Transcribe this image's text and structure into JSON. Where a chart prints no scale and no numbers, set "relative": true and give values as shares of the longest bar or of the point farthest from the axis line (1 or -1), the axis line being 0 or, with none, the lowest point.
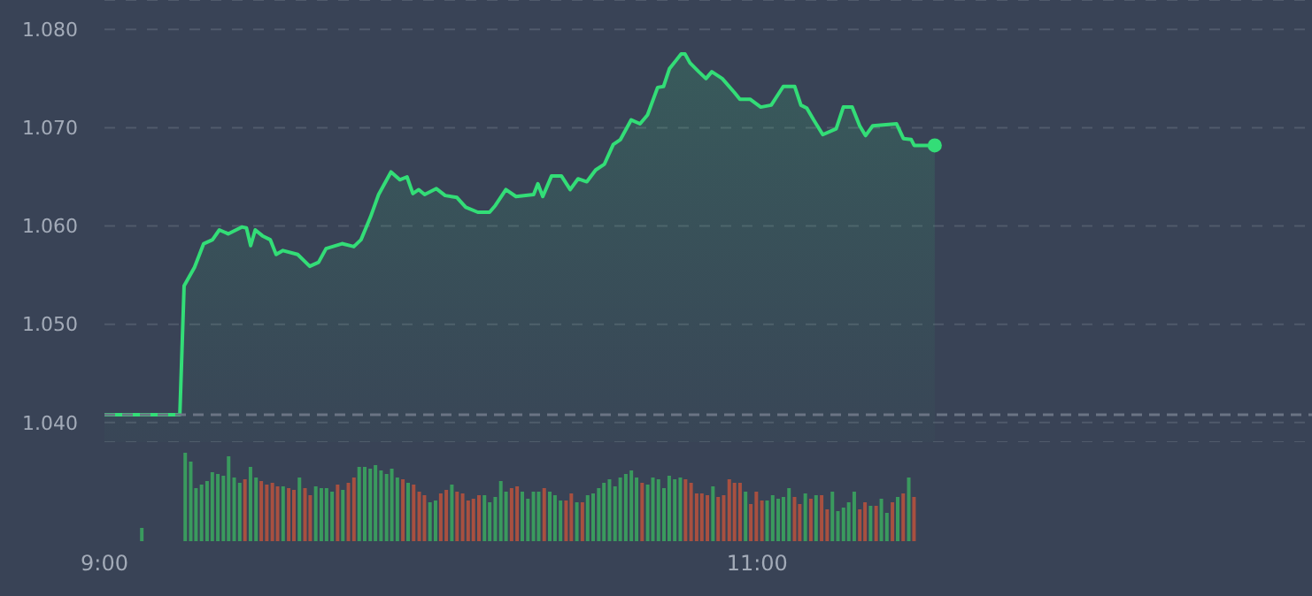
{
  "chart_data": [
    {
      "type": "area",
      "color": "#33dd77",
      "xlim": [
        9,
        12.7
      ],
      "ylim": [
        1.038,
        1.083
      ],
      "yticks": [
        {
          "value": 1.04,
          "label": "1.040"
        },
        {
          "value": 1.05,
          "label": "1.050"
        },
        {
          "value": 1.06,
          "label": "1.060"
        },
        {
          "value": 1.07,
          "label": "1.070"
        },
        {
          "value": 1.08,
          "label": "1.080"
        }
      ],
      "grid": "y",
      "tick_labels": "y",
      "x": [
        9.0,
        9.231,
        9.244,
        9.276,
        9.304,
        9.331,
        9.352,
        9.379,
        9.421,
        9.435,
        9.448,
        9.462,
        9.484,
        9.508,
        9.526,
        9.547,
        9.592,
        9.629,
        9.656,
        9.679,
        9.728,
        9.764,
        9.786,
        9.815,
        9.84,
        9.878,
        9.905,
        9.927,
        9.945,
        9.963,
        9.981,
        10.017,
        10.044,
        10.08,
        10.107,
        10.144,
        10.18,
        10.198,
        10.23,
        10.261,
        10.315,
        10.328,
        10.343,
        10.37,
        10.4,
        10.427,
        10.451,
        10.478,
        10.505,
        10.532,
        10.559,
        10.581,
        10.614,
        10.641,
        10.664,
        10.695,
        10.713,
        10.731,
        10.767,
        10.779,
        10.794,
        10.821,
        10.843,
        10.861,
        10.893,
        10.93,
        10.947,
        10.978,
        11.011,
        11.043,
        11.08,
        11.115,
        11.134,
        11.152,
        11.173,
        11.201,
        11.242,
        11.264,
        11.291,
        11.314,
        11.332,
        11.354,
        11.427,
        11.448,
        11.472,
        11.481,
        11.544
      ],
      "values": [
        1.0408,
        1.0408,
        1.0539,
        1.0558,
        1.0582,
        1.0586,
        1.0596,
        1.0592,
        1.0599,
        1.0598,
        1.058,
        1.0596,
        1.059,
        1.0586,
        1.0571,
        1.0575,
        1.0571,
        1.0559,
        1.0563,
        1.0577,
        1.0582,
        1.0579,
        1.0586,
        1.0609,
        1.0632,
        1.0655,
        1.0647,
        1.065,
        1.0633,
        1.0637,
        1.0632,
        1.0638,
        1.0631,
        1.0629,
        1.0619,
        1.0614,
        1.0614,
        1.0621,
        1.0637,
        1.063,
        1.0632,
        1.0643,
        1.063,
        1.0651,
        1.0651,
        1.0637,
        1.0648,
        1.0645,
        1.0657,
        1.0663,
        1.0683,
        1.0688,
        1.0708,
        1.0704,
        1.0713,
        1.0741,
        1.0742,
        1.076,
        1.0775,
        1.0775,
        1.0766,
        1.0757,
        1.075,
        1.0757,
        1.075,
        1.0736,
        1.0729,
        1.0729,
        1.0721,
        1.0723,
        1.0742,
        1.0742,
        1.0723,
        1.072,
        1.0708,
        1.0693,
        1.0699,
        1.0721,
        1.0721,
        1.0702,
        1.0692,
        1.0702,
        1.0704,
        1.0689,
        1.0688,
        1.0682,
        1.0682
      ],
      "ref_lines": [
        {
          "axis": "y",
          "value": 1.0408,
          "line_style": "dashed",
          "color": "#6b7484"
        }
      ]
    },
    {
      "type": "bar",
      "relative": true,
      "tick_labels": "x",
      "xlim": [
        9,
        12.7
      ],
      "xticks": [
        {
          "value": 9,
          "label": "9:00"
        },
        {
          "value": 11,
          "label": "11:00"
        }
      ],
      "x": [
        9.117,
        9.25,
        9.267,
        9.283,
        9.3,
        9.317,
        9.333,
        9.35,
        9.367,
        9.383,
        9.4,
        9.417,
        9.433,
        9.45,
        9.467,
        9.483,
        9.5,
        9.517,
        9.533,
        9.55,
        9.567,
        9.583,
        9.6,
        9.617,
        9.633,
        9.65,
        9.667,
        9.683,
        9.7,
        9.717,
        9.733,
        9.75,
        9.767,
        9.783,
        9.8,
        9.817,
        9.833,
        9.85,
        9.867,
        9.883,
        9.9,
        9.917,
        9.933,
        9.95,
        9.967,
        9.983,
        10.0,
        10.017,
        10.033,
        10.05,
        10.067,
        10.083,
        10.1,
        10.117,
        10.133,
        10.15,
        10.167,
        10.183,
        10.2,
        10.217,
        10.233,
        10.25,
        10.267,
        10.283,
        10.3,
        10.317,
        10.333,
        10.35,
        10.367,
        10.383,
        10.4,
        10.417,
        10.433,
        10.45,
        10.467,
        10.483,
        10.5,
        10.517,
        10.533,
        10.55,
        10.567,
        10.583,
        10.6,
        10.617,
        10.633,
        10.65,
        10.667,
        10.683,
        10.7,
        10.717,
        10.733,
        10.75,
        10.767,
        10.783,
        10.8,
        10.817,
        10.833,
        10.85,
        10.867,
        10.883,
        10.9,
        10.917,
        10.933,
        10.95,
        10.967,
        10.983,
        11.0,
        11.017,
        11.033,
        11.05,
        11.067,
        11.083,
        11.1,
        11.117,
        11.133,
        11.15,
        11.167,
        11.183,
        11.2,
        11.217,
        11.233,
        11.25,
        11.267,
        11.283,
        11.3,
        11.317,
        11.333,
        11.35,
        11.367,
        11.383,
        11.4,
        11.417,
        11.433,
        11.45,
        11.467,
        11.483
      ],
      "values": [
        0.15,
        1,
        0.9,
        0.6,
        0.64,
        0.68,
        0.78,
        0.76,
        0.74,
        0.96,
        0.72,
        0.66,
        0.7,
        0.84,
        0.72,
        0.68,
        0.64,
        0.66,
        0.62,
        0.62,
        0.6,
        0.58,
        0.72,
        0.6,
        0.52,
        0.62,
        0.6,
        0.6,
        0.56,
        0.64,
        0.58,
        0.66,
        0.72,
        0.84,
        0.84,
        0.82,
        0.86,
        0.8,
        0.76,
        0.82,
        0.72,
        0.7,
        0.66,
        0.64,
        0.56,
        0.52,
        0.44,
        0.46,
        0.54,
        0.58,
        0.64,
        0.56,
        0.54,
        0.46,
        0.48,
        0.52,
        0.52,
        0.44,
        0.5,
        0.68,
        0.56,
        0.6,
        0.62,
        0.56,
        0.48,
        0.56,
        0.56,
        0.6,
        0.56,
        0.52,
        0.46,
        0.46,
        0.54,
        0.44,
        0.44,
        0.52,
        0.54,
        0.6,
        0.66,
        0.7,
        0.62,
        0.72,
        0.76,
        0.8,
        0.72,
        0.66,
        0.64,
        0.72,
        0.7,
        0.6,
        0.74,
        0.7,
        0.72,
        0.7,
        0.66,
        0.54,
        0.54,
        0.52,
        0.62,
        0.5,
        0.52,
        0.7,
        0.66,
        0.66,
        0.56,
        0.42,
        0.56,
        0.46,
        0.46,
        0.52,
        0.48,
        0.5,
        0.6,
        0.5,
        0.42,
        0.54,
        0.48,
        0.52,
        0.52,
        0.36,
        0.56,
        0.34,
        0.38,
        0.44,
        0.56,
        0.36,
        0.44,
        0.4,
        0.4,
        0.48,
        0.32,
        0.44,
        0.5,
        0.54,
        0.72,
        0.5
      ],
      "colors": [
        "#3a9a5e",
        "#3a9a5e",
        "#3a9a5e",
        "#3a9a5e",
        "#3a9a5e",
        "#3a9a5e",
        "#3a9a5e",
        "#3a9a5e",
        "#3a9a5e",
        "#3a9a5e",
        "#3a9a5e",
        "#3a9a5e",
        "#a85040",
        "#3a9a5e",
        "#3a9a5e",
        "#a85040",
        "#a85040",
        "#a85040",
        "#a85040",
        "#3a9a5e",
        "#a85040",
        "#a85040",
        "#3a9a5e",
        "#a85040",
        "#a85040",
        "#3a9a5e",
        "#3a9a5e",
        "#3a9a5e",
        "#3a9a5e",
        "#a85040",
        "#3a9a5e",
        "#a85040",
        "#a85040",
        "#3a9a5e",
        "#3a9a5e",
        "#3a9a5e",
        "#3a9a5e",
        "#3a9a5e",
        "#3a9a5e",
        "#3a9a5e",
        "#3a9a5e",
        "#a85040",
        "#3a9a5e",
        "#a85040",
        "#a85040",
        "#a85040",
        "#3a9a5e",
        "#3a9a5e",
        "#a85040",
        "#a85040",
        "#3a9a5e",
        "#a85040",
        "#a85040",
        "#a85040",
        "#a85040",
        "#a85040",
        "#3a9a5e",
        "#3a9a5e",
        "#3a9a5e",
        "#3a9a5e",
        "#3a9a5e",
        "#a85040",
        "#a85040",
        "#3a9a5e",
        "#3a9a5e",
        "#3a9a5e",
        "#3a9a5e",
        "#a85040",
        "#3a9a5e",
        "#3a9a5e",
        "#3a9a5e",
        "#a85040",
        "#a85040",
        "#3a9a5e",
        "#a85040",
        "#3a9a5e",
        "#3a9a5e",
        "#3a9a5e",
        "#3a9a5e",
        "#3a9a5e",
        "#3a9a5e",
        "#3a9a5e",
        "#3a9a5e",
        "#3a9a5e",
        "#3a9a5e",
        "#a85040",
        "#3a9a5e",
        "#3a9a5e",
        "#3a9a5e",
        "#3a9a5e",
        "#3a9a5e",
        "#3a9a5e",
        "#3a9a5e",
        "#a85040",
        "#a85040",
        "#a85040",
        "#a85040",
        "#a85040",
        "#3a9a5e",
        "#a85040",
        "#a85040",
        "#a85040",
        "#a85040",
        "#a85040",
        "#3a9a5e",
        "#a85040",
        "#a85040",
        "#a85040",
        "#3a9a5e",
        "#3a9a5e",
        "#3a9a5e",
        "#3a9a5e",
        "#3a9a5e",
        "#a85040",
        "#a85040",
        "#3a9a5e",
        "#a85040",
        "#3a9a5e",
        "#a85040",
        "#a85040",
        "#3a9a5e",
        "#3a9a5e",
        "#3a9a5e",
        "#3a9a5e",
        "#3a9a5e",
        "#a85040",
        "#a85040",
        "#3a9a5e",
        "#a85040",
        "#3a9a5e",
        "#3a9a5e",
        "#a85040",
        "#3a9a5e",
        "#a85040",
        "#3a9a5e",
        "#a85040"
      ]
    }
  ]
}
